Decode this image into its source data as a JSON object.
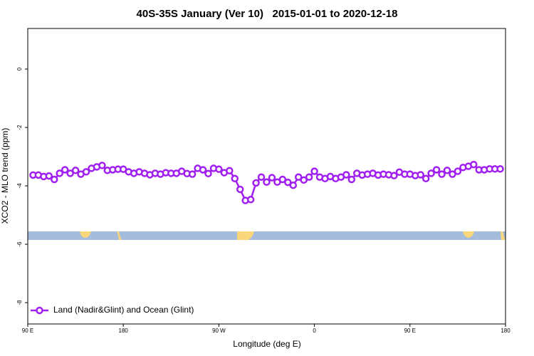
{
  "chart_data": {
    "type": "line",
    "title": "40S-35S January (Ver 10)   2015-01-01 to 2020-12-18",
    "x_label": "Longitude (deg E)",
    "y_label": "XCO2 - MLO trend (ppm)",
    "xlim": [
      90,
      540
    ],
    "ylim": [
      -8.73,
      1.39
    ],
    "xticks": [
      {
        "value": 90,
        "label": "90 E"
      },
      180,
      {
        "value": 270,
        "label": "90 W"
      },
      {
        "value": 360,
        "label": "0"
      },
      {
        "value": 450,
        "label": "90 E"
      },
      {
        "value": 540,
        "label": "180"
      }
    ],
    "yticks": [
      0,
      -2,
      -4,
      -6,
      -8
    ],
    "legend": "bottom-left",
    "x": [
      95,
      100,
      105,
      110,
      115,
      120,
      125,
      130,
      135,
      140,
      145,
      150,
      155,
      160,
      165,
      170,
      175,
      180,
      185,
      190,
      195,
      200,
      205,
      210,
      215,
      220,
      225,
      230,
      235,
      240,
      245,
      250,
      255,
      260,
      265,
      270,
      275,
      280,
      285,
      290,
      295,
      300,
      305,
      310,
      315,
      320,
      325,
      330,
      335,
      340,
      345,
      350,
      355,
      360,
      365,
      370,
      375,
      380,
      385,
      390,
      395,
      400,
      405,
      410,
      415,
      420,
      425,
      430,
      435,
      440,
      445,
      450,
      455,
      460,
      465,
      470,
      475,
      480,
      485,
      490,
      495,
      500,
      505,
      510,
      515,
      520,
      525,
      530,
      535
    ],
    "series": [
      {
        "name": "Land (Nadir&Glint) and Ocean (Glint)",
        "color": "#a020f0",
        "values": [
          -3.63,
          -3.63,
          -3.68,
          -3.66,
          -3.78,
          -3.57,
          -3.45,
          -3.57,
          -3.47,
          -3.6,
          -3.52,
          -3.4,
          -3.35,
          -3.3,
          -3.47,
          -3.45,
          -3.43,
          -3.43,
          -3.52,
          -3.57,
          -3.52,
          -3.57,
          -3.62,
          -3.57,
          -3.6,
          -3.55,
          -3.57,
          -3.57,
          -3.5,
          -3.58,
          -3.6,
          -3.4,
          -3.45,
          -3.58,
          -3.4,
          -3.43,
          -3.55,
          -3.48,
          -3.75,
          -4.12,
          -4.5,
          -4.47,
          -3.9,
          -3.7,
          -3.87,
          -3.72,
          -3.87,
          -3.78,
          -3.88,
          -3.98,
          -3.7,
          -3.8,
          -3.7,
          -3.5,
          -3.7,
          -3.75,
          -3.68,
          -3.75,
          -3.7,
          -3.62,
          -3.78,
          -3.57,
          -3.63,
          -3.6,
          -3.57,
          -3.63,
          -3.6,
          -3.62,
          -3.65,
          -3.53,
          -3.6,
          -3.6,
          -3.65,
          -3.62,
          -3.75,
          -3.57,
          -3.45,
          -3.6,
          -3.47,
          -3.6,
          -3.5,
          -3.37,
          -3.33,
          -3.27,
          -3.45,
          -3.45,
          -3.42,
          -3.42,
          -3.42
        ]
      }
    ]
  }
}
